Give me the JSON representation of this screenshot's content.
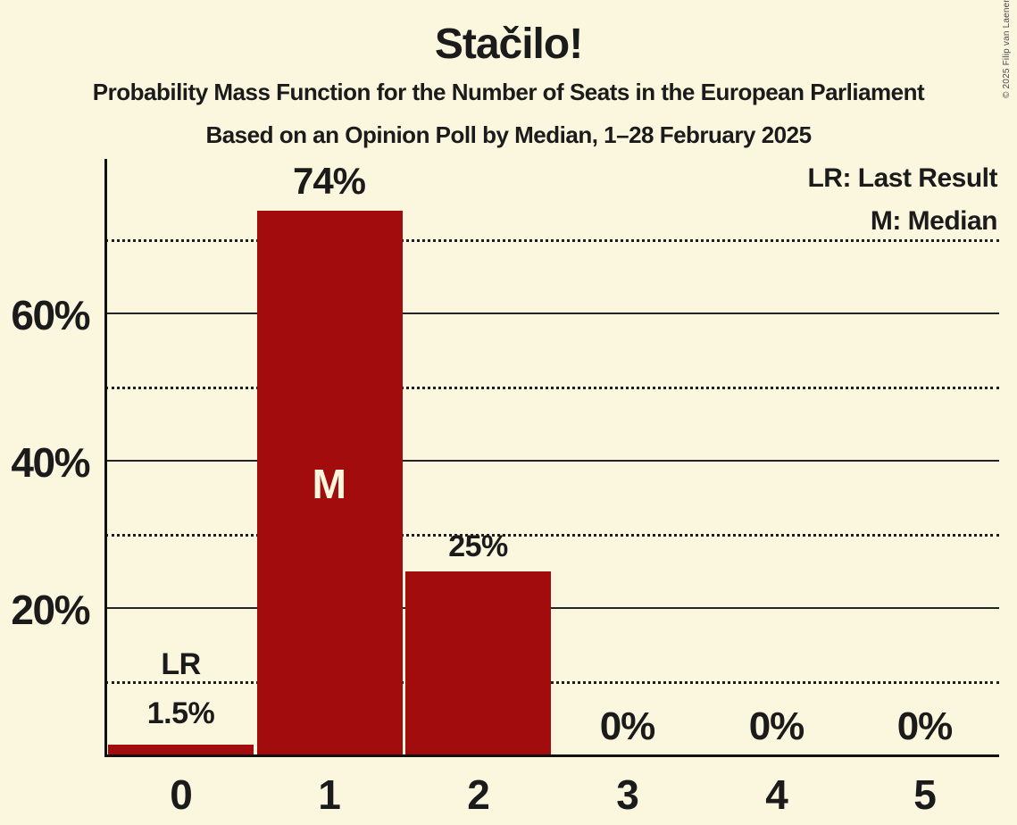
{
  "header": {
    "title": "Stačilo!",
    "subtitle": "Probability Mass Function for the Number of Seats in the European Parliament",
    "poll_info": "Based on an Opinion Poll by Median, 1–28 February 2025"
  },
  "legend": {
    "last_result": "LR: Last Result",
    "median": "M: Median"
  },
  "copyright": "© 2025 Filip van Laenen",
  "colors": {
    "background": "#FBF7DE",
    "bar": "#A30C0C",
    "text": "#1B1B1B"
  },
  "chart_data": {
    "type": "bar",
    "title": "Stačilo!",
    "categories": [
      "0",
      "1",
      "2",
      "3",
      "4",
      "5"
    ],
    "values": [
      1.5,
      74,
      25,
      0,
      0,
      0
    ],
    "value_labels": [
      "1.5%",
      "74%",
      "25%",
      "0%",
      "0%",
      "0%"
    ],
    "annotations": {
      "last_result_marker": "LR",
      "last_result_bar_index": 0,
      "median_marker": "M",
      "median_bar_index": 1
    },
    "y_tick_labels": [
      "20%",
      "40%",
      "60%"
    ],
    "ylim": [
      0,
      80
    ],
    "gridlines_solid_pct": [
      20,
      40,
      60
    ],
    "gridlines_dotted_pct": [
      10,
      30,
      50,
      70
    ],
    "legend_position": "top-right",
    "xlabel": "",
    "ylabel": ""
  }
}
